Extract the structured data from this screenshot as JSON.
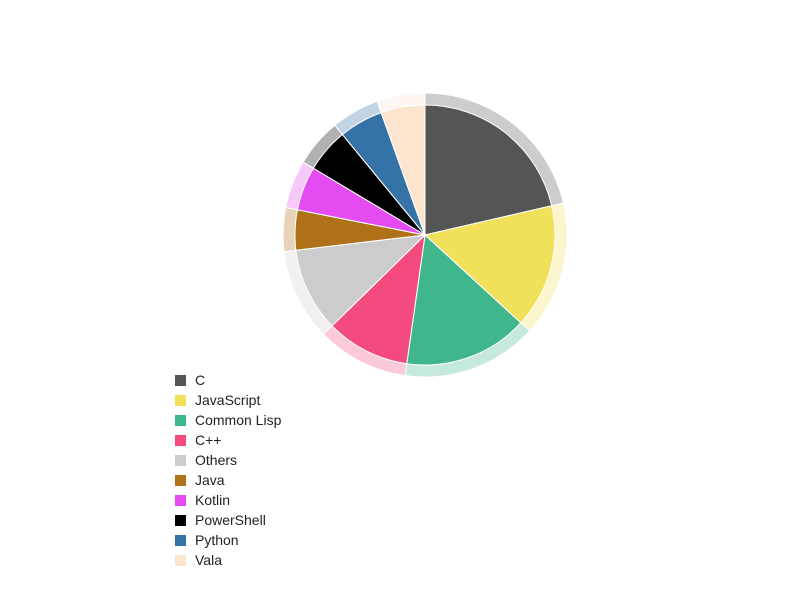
{
  "chart_data": {
    "type": "pie",
    "title": "",
    "style": "donut-halo pie (outer translucent ring per slice)",
    "legend_position": "bottom-left",
    "slices": [
      {
        "label": "C",
        "value": 21.5,
        "color": "#555555"
      },
      {
        "label": "JavaScript",
        "value": 15.5,
        "color": "#f1e05a"
      },
      {
        "label": "Common Lisp",
        "value": 15.5,
        "color": "#3fb68b"
      },
      {
        "label": "C++",
        "value": 10.5,
        "color": "#f34b7d"
      },
      {
        "label": "Others",
        "value": 10.5,
        "color": "#cccccc"
      },
      {
        "label": "Java",
        "value": 5.0,
        "color": "#b07219"
      },
      {
        "label": "Kotlin",
        "value": 5.5,
        "color": "#e44bf1"
      },
      {
        "label": "PowerShell",
        "value": 5.5,
        "color": "#000000"
      },
      {
        "label": "Python",
        "value": 5.5,
        "color": "#3572a5"
      },
      {
        "label": "Vala",
        "value": 5.5,
        "color": "#fde5cf"
      }
    ]
  }
}
